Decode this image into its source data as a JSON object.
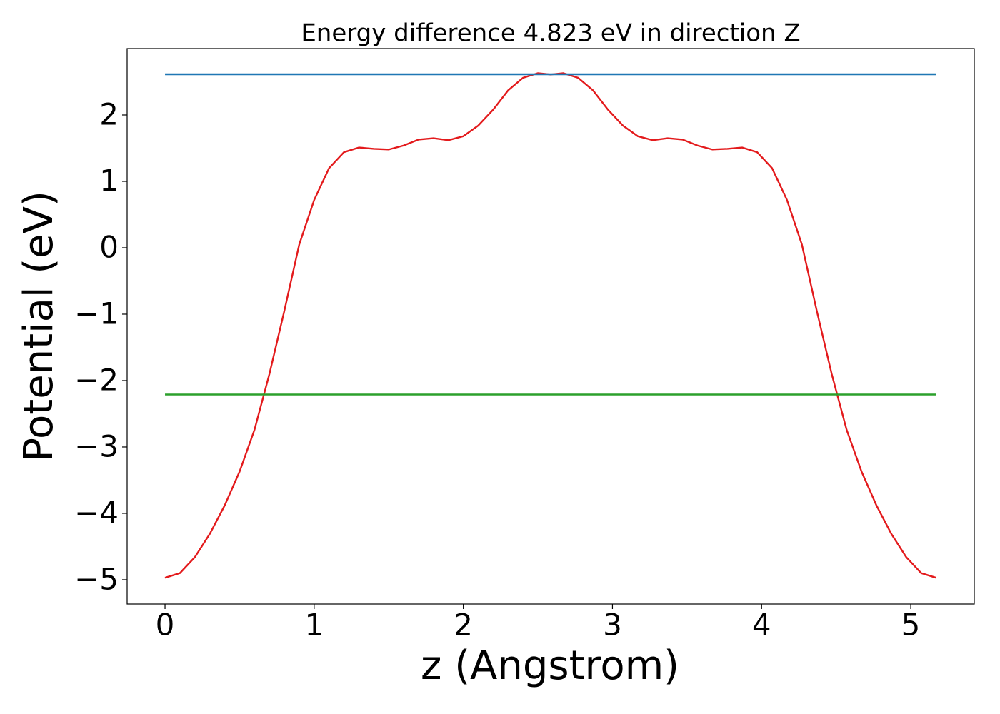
{
  "chart_data": {
    "type": "line",
    "title": "Energy difference 4.823 eV in direction Z",
    "xlabel": "z (Angstrom)",
    "ylabel": "Potential (eV)",
    "xlim": [
      -0.254,
      5.426
    ],
    "ylim": [
      -5.366,
      3.0
    ],
    "xticks": [
      0,
      1,
      2,
      3,
      4,
      5
    ],
    "yticks": [
      {
        "value": -5,
        "label": "−5"
      },
      {
        "value": -4,
        "label": "−4"
      },
      {
        "value": -3,
        "label": "−3"
      },
      {
        "value": -2,
        "label": "−2"
      },
      {
        "value": -1,
        "label": "−1"
      },
      0,
      1,
      2
    ],
    "series": [
      {
        "color": "#e31a1c",
        "x": [
          0,
          0.1,
          0.2,
          0.3,
          0.4,
          0.5,
          0.6,
          0.7,
          0.8,
          0.9,
          1.0,
          1.1,
          1.2,
          1.3,
          1.4,
          1.5,
          1.6,
          1.7,
          1.8,
          1.9,
          2.0,
          2.1,
          2.2,
          2.3,
          2.4,
          2.5,
          2.585,
          2.67,
          2.77,
          2.87,
          2.97,
          3.07,
          3.17,
          3.27,
          3.37,
          3.47,
          3.57,
          3.67,
          3.77,
          3.87,
          3.97,
          4.07,
          4.17,
          4.27,
          4.37,
          4.47,
          4.57,
          4.67,
          4.77,
          4.87,
          4.97,
          5.07,
          5.17
        ],
        "values": [
          -4.97,
          -4.9,
          -4.66,
          -4.31,
          -3.88,
          -3.37,
          -2.74,
          -1.9,
          -0.95,
          0.05,
          0.72,
          1.2,
          1.44,
          1.51,
          1.49,
          1.48,
          1.54,
          1.63,
          1.65,
          1.62,
          1.68,
          1.84,
          2.08,
          2.37,
          2.56,
          2.63,
          2.61,
          2.63,
          2.56,
          2.37,
          2.08,
          1.84,
          1.68,
          1.62,
          1.65,
          1.63,
          1.54,
          1.48,
          1.49,
          1.51,
          1.44,
          1.2,
          0.72,
          0.05,
          -0.95,
          -1.9,
          -2.74,
          -3.37,
          -3.88,
          -4.31,
          -4.66,
          -4.9,
          -4.97
        ]
      },
      {
        "color": "#1f77b4",
        "x": [
          0,
          5.17
        ],
        "values": [
          2.613,
          2.613
        ]
      },
      {
        "color": "#2ca02c",
        "x": [
          0,
          5.17
        ],
        "values": [
          -2.21,
          -2.21
        ]
      }
    ]
  }
}
